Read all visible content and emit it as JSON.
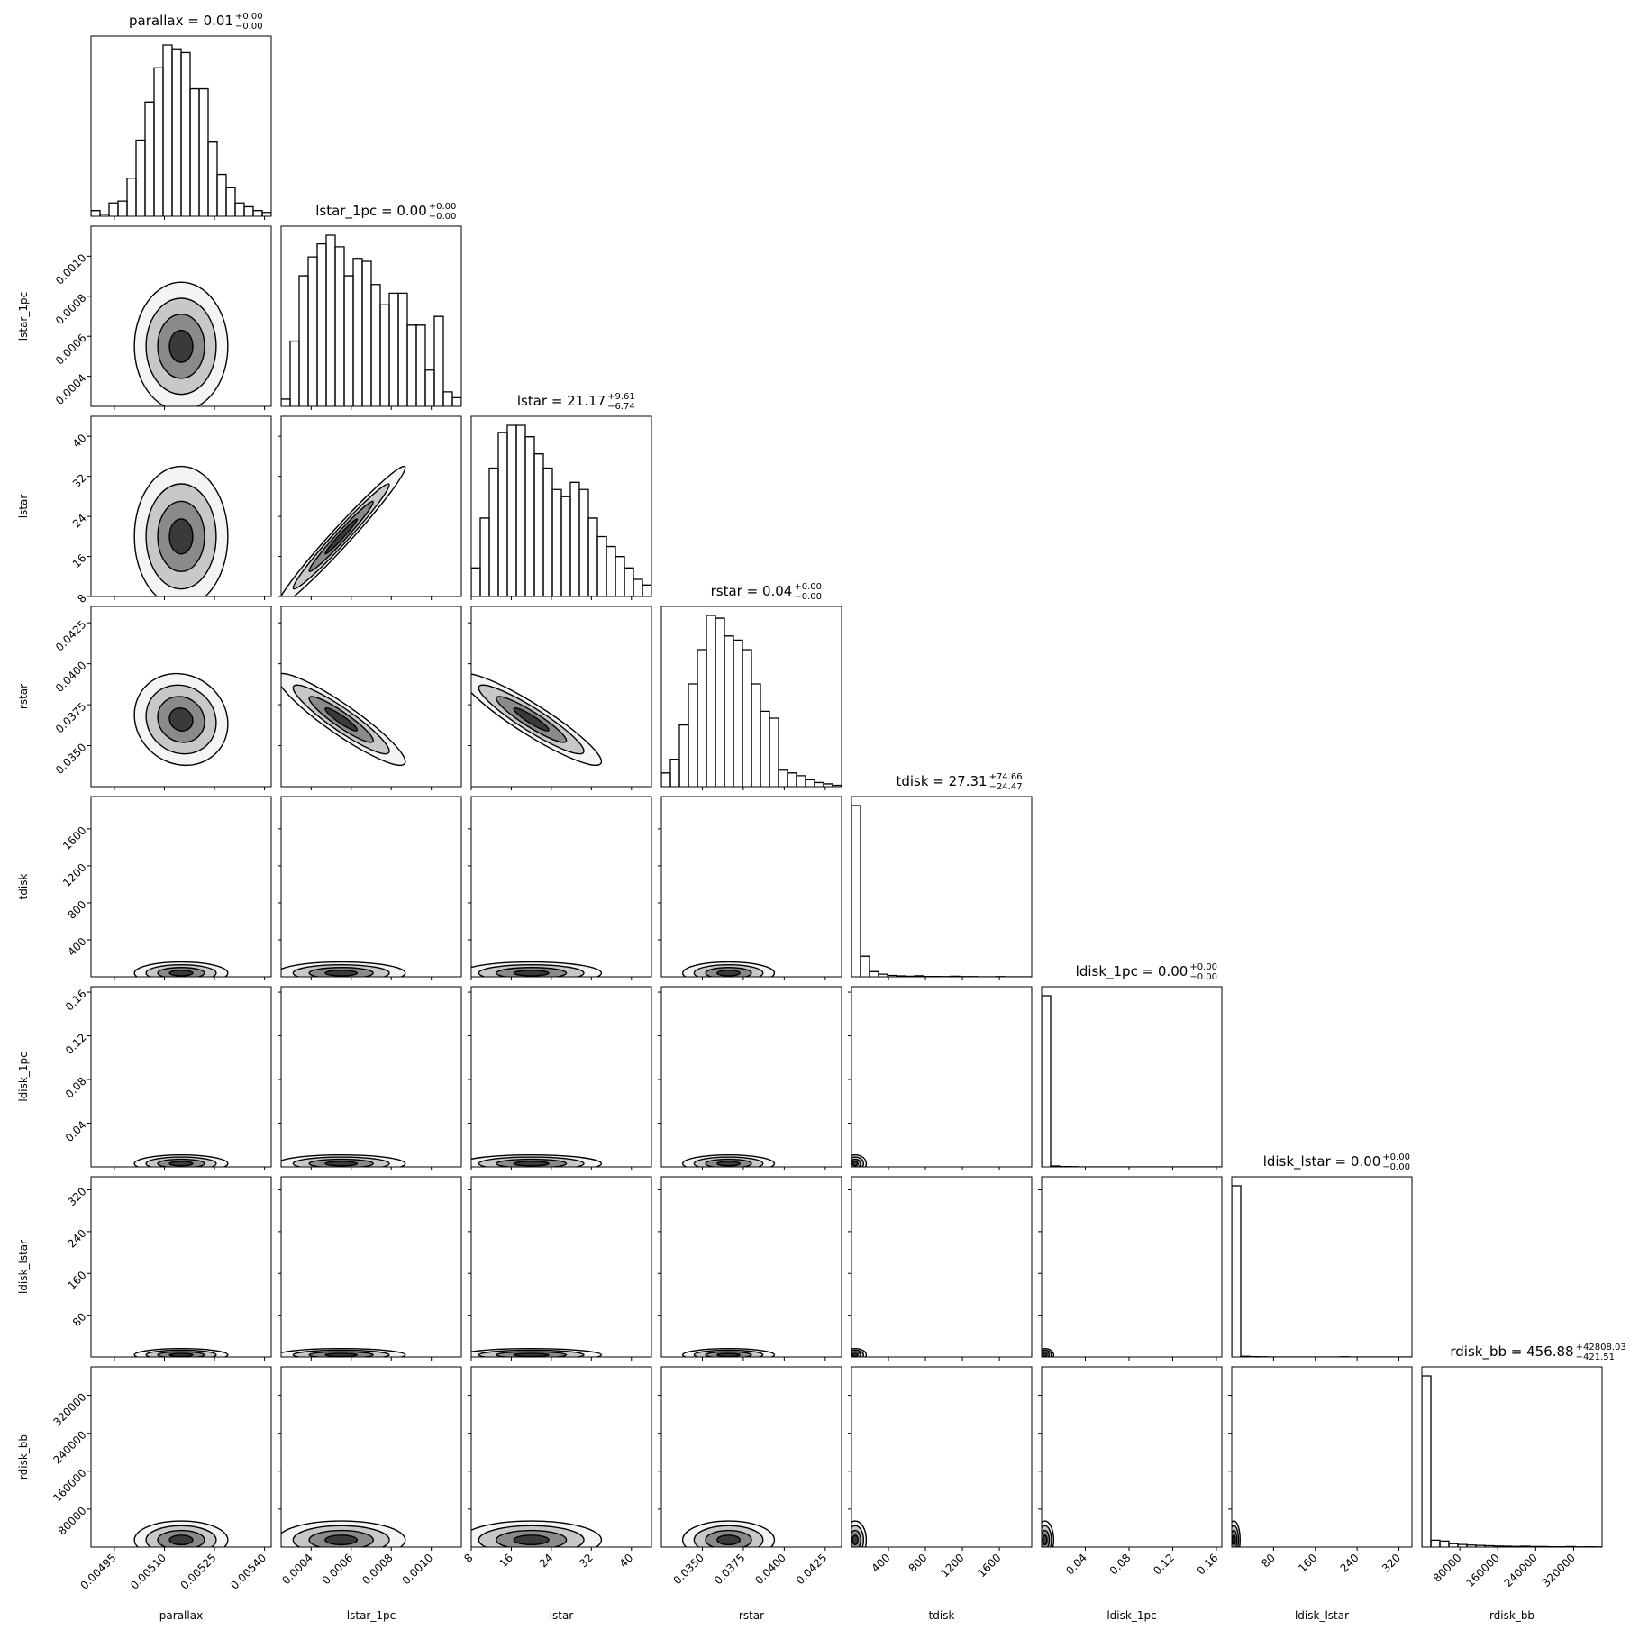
{
  "chart_data": {
    "type": "corner",
    "params": [
      {
        "name": "parallax",
        "title": "parallax = 0.01",
        "title_plus": "+0.00",
        "title_minus": "−0.00",
        "lim": [
          0.00488,
          0.00542
        ],
        "ticks": [
          0.00495,
          {
            "value": 0.0051,
            "label": "0.00510"
          },
          0.00525,
          {
            "value": 0.0054,
            "label": "0.00540"
          }
        ],
        "bins": [
          0.00488,
          0.004907,
          0.004934,
          0.004961,
          0.004988,
          0.005015,
          0.005042,
          0.005069,
          0.005096,
          0.005123,
          0.00515,
          0.005177,
          0.005204,
          0.005231,
          0.005258,
          0.005285,
          0.005312,
          0.005339,
          0.005366,
          0.005393,
          0.00542
        ],
        "counts": [
          3,
          1,
          7,
          8,
          20,
          40,
          60,
          78,
          90,
          88,
          86,
          67,
          67,
          39,
          22,
          15,
          7,
          5,
          3,
          2
        ],
        "peak": 0.00515,
        "width": 7e-05
      },
      {
        "name": "lstar_1pc",
        "title": "lstar_1pc = 0.00",
        "title_plus": "+0.00",
        "title_minus": "−0.00",
        "lim": [
          0.00025,
          0.00115
        ],
        "ticks": [
          0.0004,
          0.0006,
          0.0008,
          {
            "value": 0.001,
            "label": "0.0010"
          }
        ],
        "bins": [
          0.00025,
          0.000295,
          0.00034,
          0.000385,
          0.00043,
          0.000475,
          0.00052,
          0.000565,
          0.00061,
          0.000655,
          0.0007,
          0.000745,
          0.00079,
          0.000835,
          0.00088,
          0.000925,
          0.00097,
          0.001015,
          0.00106,
          0.001105,
          0.00115
        ],
        "counts": [
          5,
          45,
          90,
          103,
          112,
          118,
          110,
          90,
          102,
          100,
          84,
          70,
          78,
          78,
          56,
          56,
          25,
          62,
          10,
          6
        ],
        "peak": 0.00055,
        "width": 0.00016
      },
      {
        "name": "lstar",
        "title": "lstar = 21.17",
        "title_plus": "+9.61",
        "title_minus": "−6.74",
        "lim": [
          8,
          44
        ],
        "ticks": [
          8,
          16,
          24,
          32,
          40
        ],
        "bins": [
          8,
          9.8,
          11.6,
          13.4,
          15.2,
          17,
          18.8,
          20.6,
          22.4,
          24.2,
          26,
          27.8,
          29.6,
          31.4,
          33.2,
          35,
          36.8,
          38.6,
          40.4,
          42.2,
          44
        ],
        "counts": [
          20,
          55,
          90,
          115,
          120,
          120,
          112,
          100,
          90,
          75,
          70,
          80,
          75,
          55,
          42,
          35,
          28,
          20,
          12,
          8
        ],
        "peak": 20,
        "width": 7
      },
      {
        "name": "rstar",
        "title": "rstar = 0.04",
        "title_plus": "+0.00",
        "title_minus": "−0.00",
        "lim": [
          0.0325,
          0.0435
        ],
        "ticks": [
          {
            "value": 0.035,
            "label": "0.0350"
          },
          0.0375,
          {
            "value": 0.04,
            "label": "0.0400"
          },
          0.0425
        ],
        "bins": [
          0.0325,
          0.03305,
          0.0336,
          0.03415,
          0.0347,
          0.03525,
          0.0358,
          0.03635,
          0.0369,
          0.03745,
          0.038,
          0.03855,
          0.0391,
          0.03965,
          0.0402,
          0.04075,
          0.0413,
          0.04185,
          0.0424,
          0.04295,
          0.0435
        ],
        "counts": [
          10,
          20,
          45,
          75,
          100,
          125,
          123,
          110,
          107,
          100,
          75,
          55,
          50,
          12,
          10,
          8,
          5,
          3,
          2,
          1
        ],
        "peak": 0.0366,
        "width": 0.0014
      },
      {
        "name": "tdisk",
        "title": "tdisk = 27.31",
        "title_plus": "+74.66",
        "title_minus": "−24.47",
        "lim": [
          0,
          1950
        ],
        "ticks": [
          400,
          800,
          1200,
          1600
        ],
        "bins": [
          0,
          97.5,
          195,
          292.5,
          390,
          487.5,
          585,
          682.5,
          780,
          877.5,
          975,
          1072.5,
          1170,
          1267.5,
          1365,
          1462.5,
          1560,
          1657.5,
          1755,
          1852.5,
          1950
        ],
        "counts": [
          1000,
          120,
          30,
          15,
          8,
          5,
          3,
          6,
          2,
          2,
          1,
          3,
          1,
          1,
          0,
          0,
          1,
          0,
          0,
          0
        ],
        "peak": 40,
        "width": 60
      },
      {
        "name": "ldisk_1pc",
        "title": "ldisk_1pc = 0.00",
        "title_plus": "+0.00",
        "title_minus": "−0.00",
        "lim": [
          0,
          0.165
        ],
        "ticks": [
          0.04,
          0.08,
          0.12,
          0.16
        ],
        "bins": [
          0,
          0.00825,
          0.0165,
          0.02475,
          0.033,
          0.04125,
          0.0495,
          0.05775,
          0.066,
          0.07425,
          0.0825,
          0.09075,
          0.099,
          0.10725,
          0.1155,
          0.12375,
          0.132,
          0.14025,
          0.1485,
          0.15675,
          0.165
        ],
        "counts": [
          1000,
          5,
          2,
          1,
          0,
          0,
          0,
          0,
          0,
          0,
          0,
          0,
          0,
          0,
          0,
          0,
          0,
          0,
          0,
          0
        ],
        "peak": 0.003,
        "width": 0.004
      },
      {
        "name": "ldisk_lstar",
        "title": "ldisk_lstar = 0.00",
        "title_plus": "+0.00",
        "title_minus": "−0.00",
        "lim": [
          0,
          345
        ],
        "ticks": [
          80,
          160,
          240,
          320
        ],
        "bins": [
          0,
          17.25,
          34.5,
          51.75,
          69,
          86.25,
          103.5,
          120.75,
          138,
          155.25,
          172.5,
          189.75,
          207,
          224.25,
          241.5,
          258.75,
          276,
          293.25,
          310.5,
          327.75,
          345
        ],
        "counts": [
          1000,
          4,
          2,
          1,
          0,
          0,
          0,
          0,
          0,
          0,
          0,
          0,
          1,
          0,
          0,
          0,
          0,
          0,
          0,
          0
        ],
        "peak": 4,
        "width": 6
      },
      {
        "name": "rdisk_bb",
        "title": "rdisk_bb = 456.88",
        "title_plus": "+42808.03",
        "title_minus": "−421.51",
        "lim": [
          0,
          380000
        ],
        "ticks": [
          80000,
          160000,
          240000,
          320000
        ],
        "bins": [
          0,
          19000,
          38000,
          57000,
          76000,
          95000,
          114000,
          133000,
          152000,
          171000,
          190000,
          209000,
          228000,
          247000,
          266000,
          285000,
          304000,
          323000,
          342000,
          361000,
          380000
        ],
        "counts": [
          1000,
          40,
          35,
          20,
          15,
          12,
          10,
          8,
          6,
          5,
          4,
          5,
          3,
          3,
          2,
          2,
          3,
          1,
          2,
          1
        ],
        "peak": 15000,
        "width": 20000
      }
    ],
    "pairs": [
      {
        "x": 0,
        "y": 1,
        "rho": 0
      },
      {
        "x": 0,
        "y": 2,
        "rho": 0
      },
      {
        "x": 0,
        "y": 3,
        "rho": -0.1
      },
      {
        "x": 0,
        "y": 4,
        "rho": 0
      },
      {
        "x": 0,
        "y": 5,
        "rho": 0
      },
      {
        "x": 0,
        "y": 6,
        "rho": 0
      },
      {
        "x": 0,
        "y": 7,
        "rho": 0
      },
      {
        "x": 1,
        "y": 2,
        "rho": 0.98
      },
      {
        "x": 1,
        "y": 3,
        "rho": -0.92
      },
      {
        "x": 1,
        "y": 4,
        "rho": 0
      },
      {
        "x": 1,
        "y": 5,
        "rho": 0
      },
      {
        "x": 1,
        "y": 6,
        "rho": 0
      },
      {
        "x": 1,
        "y": 7,
        "rho": 0
      },
      {
        "x": 2,
        "y": 3,
        "rho": -0.92
      },
      {
        "x": 2,
        "y": 4,
        "rho": 0
      },
      {
        "x": 2,
        "y": 5,
        "rho": 0
      },
      {
        "x": 2,
        "y": 6,
        "rho": 0
      },
      {
        "x": 2,
        "y": 7,
        "rho": 0
      },
      {
        "x": 3,
        "y": 4,
        "rho": 0
      },
      {
        "x": 3,
        "y": 5,
        "rho": 0
      },
      {
        "x": 3,
        "y": 6,
        "rho": 0
      },
      {
        "x": 3,
        "y": 7,
        "rho": 0
      },
      {
        "x": 4,
        "y": 5,
        "rho": 0
      },
      {
        "x": 4,
        "y": 6,
        "rho": 0
      },
      {
        "x": 4,
        "y": 7,
        "rho": 0
      },
      {
        "x": 5,
        "y": 6,
        "rho": 0
      },
      {
        "x": 5,
        "y": 7,
        "rho": 0
      },
      {
        "x": 6,
        "y": 7,
        "rho": 0
      }
    ]
  }
}
